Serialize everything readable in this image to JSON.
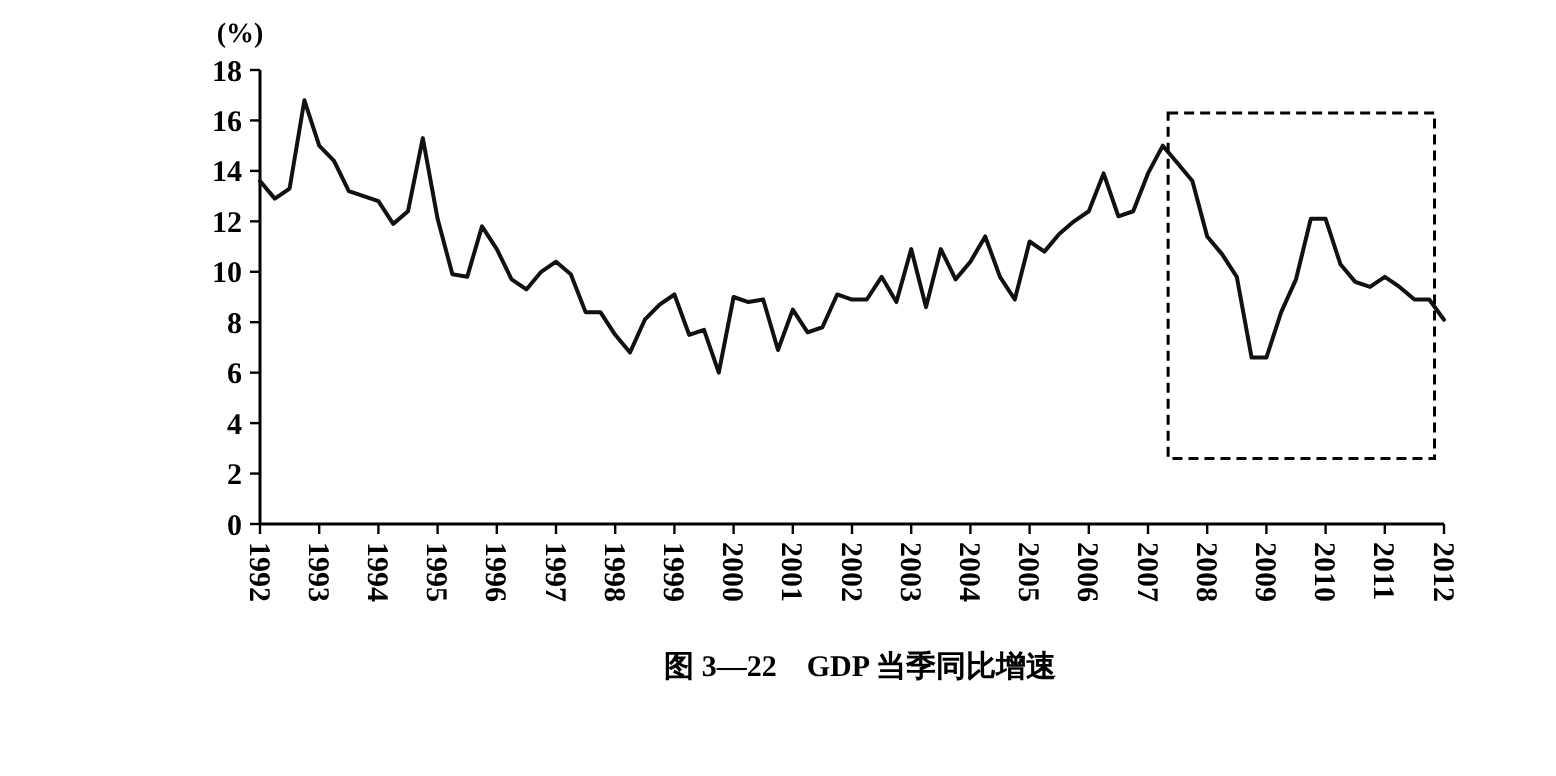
{
  "chart_data": {
    "type": "line",
    "title": "图 3—22　GDP 当季同比增速",
    "ylabel": "(%)",
    "x": [
      1992,
      1992.25,
      1992.5,
      1992.75,
      1993,
      1993.25,
      1993.5,
      1993.75,
      1994,
      1994.25,
      1994.5,
      1994.75,
      1995,
      1995.25,
      1995.5,
      1995.75,
      1996,
      1996.25,
      1996.5,
      1996.75,
      1997,
      1997.25,
      1997.5,
      1997.75,
      1998,
      1998.25,
      1998.5,
      1998.75,
      1999,
      1999.25,
      1999.5,
      1999.75,
      2000,
      2000.25,
      2000.5,
      2000.75,
      2001,
      2001.25,
      2001.5,
      2001.75,
      2002,
      2002.25,
      2002.5,
      2002.75,
      2003,
      2003.25,
      2003.5,
      2003.75,
      2004,
      2004.25,
      2004.5,
      2004.75,
      2005,
      2005.25,
      2005.5,
      2005.75,
      2006,
      2006.25,
      2006.5,
      2006.75,
      2007,
      2007.25,
      2007.5,
      2007.75,
      2008,
      2008.25,
      2008.5,
      2008.75,
      2009,
      2009.25,
      2009.5,
      2009.75,
      2010,
      2010.25,
      2010.5,
      2010.75,
      2011,
      2011.25,
      2011.5,
      2011.75,
      2012
    ],
    "series": [
      {
        "color": "#111111",
        "values": [
          13.6,
          12.9,
          13.3,
          16.8,
          15.0,
          14.4,
          13.2,
          13.0,
          12.8,
          11.9,
          12.4,
          15.3,
          12.1,
          9.9,
          9.8,
          11.8,
          10.9,
          9.7,
          9.3,
          10.0,
          10.4,
          9.9,
          8.4,
          8.4,
          7.5,
          6.8,
          8.1,
          8.7,
          9.1,
          7.5,
          7.7,
          6.0,
          9.0,
          8.8,
          8.9,
          6.9,
          8.5,
          7.6,
          7.8,
          9.1,
          8.9,
          8.9,
          9.8,
          8.8,
          10.9,
          8.6,
          10.9,
          9.7,
          10.4,
          11.4,
          9.8,
          8.9,
          11.2,
          10.8,
          11.5,
          12.0,
          12.4,
          13.9,
          12.2,
          12.4,
          13.9,
          15.0,
          14.3,
          13.6,
          11.4,
          10.7,
          9.8,
          6.6,
          6.6,
          8.4,
          9.7,
          12.1,
          12.1,
          10.3,
          9.6,
          9.4,
          9.8,
          9.4,
          8.9,
          8.9,
          8.1
        ]
      }
    ],
    "xlim": [
      1992,
      2012
    ],
    "xticks": [
      1992,
      1993,
      1994,
      1995,
      1996,
      1997,
      1998,
      1999,
      2000,
      2001,
      2002,
      2003,
      2004,
      2005,
      2006,
      2007,
      2008,
      2009,
      2010,
      2011,
      2012
    ],
    "ylim": [
      0,
      18
    ],
    "yticks": [
      0,
      2,
      4,
      6,
      8,
      10,
      12,
      14,
      16,
      18
    ],
    "grid": false,
    "marker": "none",
    "line_style": "solid"
  }
}
